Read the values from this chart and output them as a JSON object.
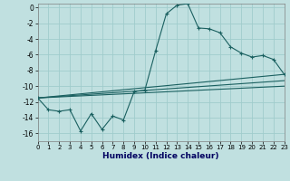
{
  "xlabel": "Humidex (Indice chaleur)",
  "bg_color": "#c0e0e0",
  "grid_color": "#a0cccc",
  "line_color": "#1a6060",
  "xlim": [
    0,
    23
  ],
  "ylim": [
    -17,
    0.5
  ],
  "yticks": [
    0,
    -2,
    -4,
    -6,
    -8,
    -10,
    -12,
    -14,
    -16
  ],
  "xticks": [
    0,
    1,
    2,
    3,
    4,
    5,
    6,
    7,
    8,
    9,
    10,
    11,
    12,
    13,
    14,
    15,
    16,
    17,
    18,
    19,
    20,
    21,
    22,
    23
  ],
  "main_x": [
    0,
    1,
    2,
    3,
    4,
    5,
    6,
    7,
    8,
    9,
    10,
    11,
    12,
    13,
    14,
    15,
    16,
    17,
    18,
    19,
    20,
    21,
    22,
    23
  ],
  "main_y": [
    -11.5,
    -13.0,
    -13.2,
    -13.0,
    -15.7,
    -13.5,
    -15.5,
    -13.8,
    -14.3,
    -10.7,
    -10.5,
    -5.5,
    -0.8,
    0.3,
    0.5,
    -2.6,
    -2.7,
    -3.2,
    -5.0,
    -5.8,
    -6.3,
    -6.1,
    -6.6,
    -8.5
  ],
  "trend1_x": [
    0,
    23
  ],
  "trend1_y": [
    -11.5,
    -8.5
  ],
  "trend2_x": [
    0,
    23
  ],
  "trend2_y": [
    -11.5,
    -9.3
  ],
  "trend3_x": [
    0,
    23
  ],
  "trend3_y": [
    -11.5,
    -10.0
  ]
}
